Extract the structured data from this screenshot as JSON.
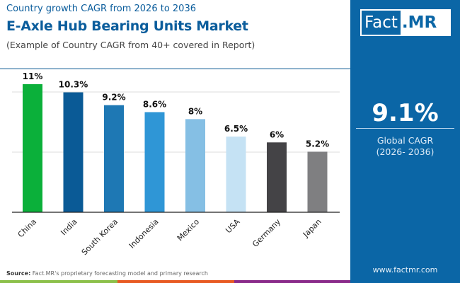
{
  "header": {
    "subtitle": "Country growth CAGR from 2026 to 2036",
    "title": "E-Axle Hub Bearing Units Market",
    "note": "(Example of Country CAGR from 40+ covered in Report)"
  },
  "logo": {
    "part1": "Fact",
    "part2": ".MR"
  },
  "summary": {
    "value": "9.1%",
    "label": "Global CAGR",
    "period": "(2026- 2036)"
  },
  "footer": {
    "source_label": "Source:",
    "source_text": " Fact.MR's proprietary forecasting model and primary research",
    "url": "www.factmr.com"
  },
  "chart_data": {
    "type": "bar",
    "categories": [
      "China",
      "India",
      "South Korea",
      "Indonesia",
      "Mexico",
      "USA",
      "Germany",
      "Japan"
    ],
    "values": [
      11,
      10.3,
      9.2,
      8.6,
      8,
      6.5,
      6,
      5.2
    ],
    "data_labels": [
      "11%",
      "10.3%",
      "9.2%",
      "8.6%",
      "8%",
      "6.5%",
      "6%",
      "5.2%"
    ],
    "colors": [
      "#0bb03a",
      "#0a5a96",
      "#1e78b4",
      "#2f96d6",
      "#85bfe4",
      "#c5e2f4",
      "#444346",
      "#7f7f81"
    ],
    "unit": "%",
    "ylim": [
      0,
      15.5
    ],
    "grid": true
  },
  "colors": {
    "brand": "#0b66a6",
    "title": "#0b5d9c",
    "strip": [
      "#8cc04a",
      "#e85a23",
      "#8a2a8a"
    ]
  }
}
